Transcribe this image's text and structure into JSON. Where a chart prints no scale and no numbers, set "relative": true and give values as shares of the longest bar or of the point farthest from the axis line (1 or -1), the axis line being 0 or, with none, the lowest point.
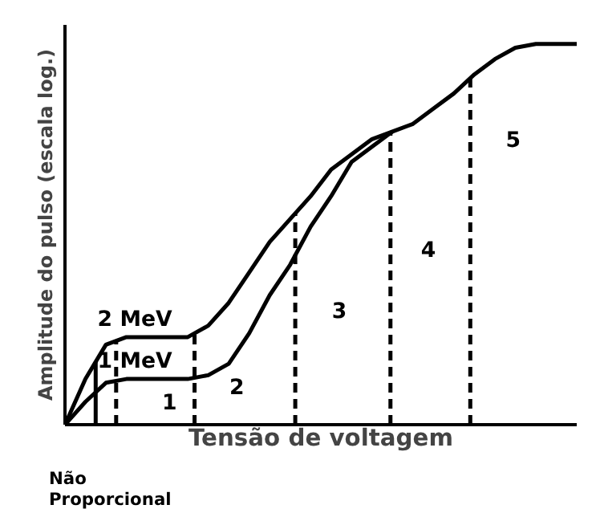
{
  "chart_data": {
    "type": "line",
    "relative": true,
    "xlabel": "Tensão de voltagem",
    "ylabel": "Amplitude do pulso (escala log.)",
    "categories": [
      null,
      null,
      null,
      null,
      null,
      null,
      null,
      null,
      null,
      null,
      null,
      null,
      null,
      null,
      null,
      null,
      null,
      null,
      null,
      null,
      null,
      null,
      null,
      null,
      null,
      null
    ],
    "line_style": "solid",
    "marker": "none",
    "series": [
      {
        "name": "2 MeV",
        "color": "#000000",
        "values": [
          0,
          0.12,
          0.21,
          0.23,
          0.23,
          0.23,
          0.23,
          0.26,
          0.32,
          0.4,
          0.48,
          0.54,
          0.6,
          0.67,
          0.71,
          0.75,
          0.77,
          0.79,
          0.83,
          0.87,
          0.92,
          0.96,
          0.99,
          1,
          1,
          1
        ]
      },
      {
        "name": "1 MeV",
        "color": "#000000",
        "values": [
          0,
          0.06,
          0.11,
          0.12,
          0.12,
          0.12,
          0.12,
          0.13,
          0.16,
          0.24,
          0.34,
          0.42,
          0.52,
          0.6,
          0.69,
          0.73,
          0.77,
          null,
          null,
          null,
          null,
          null,
          null,
          null,
          null,
          null
        ]
      }
    ],
    "annotations": [
      "1",
      "2",
      "3",
      "4",
      "5",
      "Não\nProporcional"
    ]
  }
}
